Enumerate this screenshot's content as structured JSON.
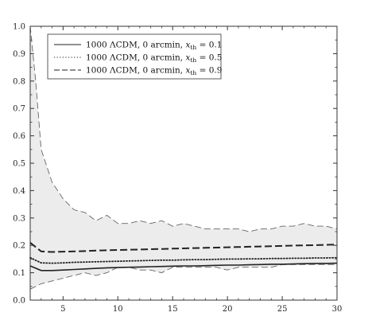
{
  "chart_data": {
    "type": "line",
    "title": "",
    "xlabel": "",
    "ylabel": "",
    "xlim": [
      2,
      30
    ],
    "ylim": [
      0.0,
      1.0
    ],
    "xticks": [
      5,
      10,
      15,
      20,
      25,
      30
    ],
    "yticks": [
      0.0,
      0.1,
      0.2,
      0.3,
      0.4,
      0.5,
      0.6,
      0.7,
      0.8,
      0.9,
      1.0
    ],
    "grid": false,
    "legend_position": "top-left",
    "series": [
      {
        "name": "1000 ΛCDM, 0 arcmin, x_th = 0.1",
        "legend": {
          "pre": "1000 ΛCDM, 0 arcmin, ",
          "var": "x",
          "sub": "th",
          "post": " = 0.1"
        },
        "style": "solid",
        "color": "#222222",
        "x": [
          2,
          3,
          4,
          5,
          6,
          7,
          8,
          9,
          10,
          11,
          12,
          13,
          14,
          15,
          16,
          17,
          18,
          19,
          20,
          21,
          22,
          23,
          24,
          25,
          26,
          27,
          28,
          29,
          30
        ],
        "y": [
          0.125,
          0.108,
          0.108,
          0.11,
          0.112,
          0.114,
          0.116,
          0.118,
          0.119,
          0.12,
          0.121,
          0.122,
          0.123,
          0.124,
          0.125,
          0.125,
          0.126,
          0.127,
          0.128,
          0.128,
          0.129,
          0.13,
          0.131,
          0.131,
          0.132,
          0.133,
          0.134,
          0.134,
          0.135
        ]
      },
      {
        "name": "1000 ΛCDM, 0 arcmin, x_th = 0.5",
        "legend": {
          "pre": "1000 ΛCDM, 0 arcmin, ",
          "var": "x",
          "sub": "th",
          "post": " = 0.5"
        },
        "style": "dotted",
        "color": "#222222",
        "x": [
          2,
          3,
          4,
          5,
          6,
          7,
          8,
          9,
          10,
          11,
          12,
          13,
          14,
          15,
          16,
          17,
          18,
          19,
          20,
          21,
          22,
          23,
          24,
          25,
          26,
          27,
          28,
          29,
          30
        ],
        "y": [
          0.155,
          0.136,
          0.135,
          0.136,
          0.138,
          0.139,
          0.14,
          0.141,
          0.142,
          0.143,
          0.144,
          0.145,
          0.146,
          0.146,
          0.147,
          0.148,
          0.148,
          0.149,
          0.15,
          0.15,
          0.151,
          0.151,
          0.152,
          0.152,
          0.153,
          0.153,
          0.154,
          0.154,
          0.155
        ]
      },
      {
        "name": "1000 ΛCDM, 0 arcmin, x_th = 0.9",
        "legend": {
          "pre": "1000 ΛCDM, 0 arcmin, ",
          "var": "x",
          "sub": "th",
          "post": " = 0.9"
        },
        "style": "dashed",
        "color": "#222222",
        "x": [
          2,
          3,
          4,
          5,
          6,
          7,
          8,
          9,
          10,
          11,
          12,
          13,
          14,
          15,
          16,
          17,
          18,
          19,
          20,
          21,
          22,
          23,
          24,
          25,
          26,
          27,
          28,
          29,
          30
        ],
        "y": [
          0.21,
          0.178,
          0.176,
          0.177,
          0.178,
          0.179,
          0.181,
          0.182,
          0.183,
          0.184,
          0.185,
          0.186,
          0.187,
          0.188,
          0.189,
          0.19,
          0.191,
          0.192,
          0.193,
          0.194,
          0.195,
          0.196,
          0.197,
          0.198,
          0.199,
          0.2,
          0.201,
          0.202,
          0.203
        ]
      }
    ],
    "band": {
      "fill": "#ececec",
      "edge_color": "#666666",
      "edge_style": "long-dash",
      "x": [
        2,
        2.5,
        3,
        4,
        5,
        6,
        7,
        8,
        9,
        10,
        11,
        12,
        13,
        14,
        15,
        16,
        17,
        18,
        19,
        20,
        21,
        22,
        23,
        24,
        25,
        26,
        27,
        28,
        29,
        30
      ],
      "upper": [
        1.0,
        0.8,
        0.55,
        0.43,
        0.37,
        0.33,
        0.32,
        0.29,
        0.31,
        0.28,
        0.28,
        0.29,
        0.28,
        0.29,
        0.27,
        0.28,
        0.27,
        0.26,
        0.26,
        0.26,
        0.26,
        0.25,
        0.26,
        0.26,
        0.27,
        0.27,
        0.28,
        0.27,
        0.27,
        0.26
      ],
      "lower": [
        0.04,
        0.05,
        0.06,
        0.07,
        0.08,
        0.09,
        0.1,
        0.09,
        0.1,
        0.12,
        0.12,
        0.11,
        0.11,
        0.1,
        0.12,
        0.12,
        0.12,
        0.12,
        0.12,
        0.11,
        0.12,
        0.12,
        0.12,
        0.12,
        0.13,
        0.13,
        0.13,
        0.13,
        0.13,
        0.13
      ]
    }
  }
}
